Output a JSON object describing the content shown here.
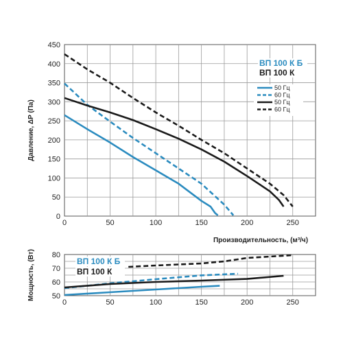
{
  "chart_data": [
    {
      "type": "line",
      "xlabel": "Производительность, (м³/ч)",
      "ylabel": "Давление, ΔP (Па)",
      "xlim": [
        0,
        275
      ],
      "ylim": [
        0,
        450
      ],
      "x_ticks": [
        0,
        50,
        100,
        150,
        200,
        250
      ],
      "y_ticks": [
        0,
        50,
        100,
        150,
        200,
        250,
        300,
        350,
        400,
        450
      ],
      "grid": true,
      "model_labels": [
        {
          "text": "ВП 100 К Б",
          "color": "#2a8bbf"
        },
        {
          "text": "ВП 100 К",
          "color": "#1a1a1a"
        }
      ],
      "legend_position": "right",
      "series": [
        {
          "name": "50 Гц",
          "color": "#2a8bbf",
          "dashed": false,
          "x": [
            0,
            25,
            50,
            75,
            100,
            125,
            150,
            160,
            165,
            168
          ],
          "y": [
            265,
            228,
            193,
            155,
            120,
            85,
            40,
            25,
            8,
            2
          ]
        },
        {
          "name": "60 Гц",
          "color": "#2a8bbf",
          "dashed": true,
          "x": [
            0,
            25,
            50,
            75,
            100,
            125,
            150,
            175,
            185
          ],
          "y": [
            348,
            292,
            248,
            205,
            165,
            125,
            85,
            30,
            2
          ]
        },
        {
          "name": "50 Гц",
          "color": "#1a1a1a",
          "dashed": false,
          "x": [
            0,
            25,
            50,
            75,
            100,
            125,
            150,
            175,
            200,
            225,
            235,
            240
          ],
          "y": [
            310,
            290,
            272,
            252,
            228,
            203,
            175,
            143,
            105,
            65,
            42,
            25
          ]
        },
        {
          "name": "60 Гц",
          "color": "#1a1a1a",
          "dashed": true,
          "x": [
            0,
            25,
            50,
            75,
            100,
            125,
            150,
            175,
            200,
            225,
            240,
            250
          ],
          "y": [
            425,
            385,
            350,
            310,
            272,
            237,
            200,
            165,
            125,
            85,
            55,
            25
          ]
        }
      ]
    },
    {
      "type": "line",
      "xlabel": "",
      "ylabel": "Мощность, (Вт)",
      "xlim": [
        0,
        275
      ],
      "ylim": [
        50,
        80
      ],
      "x_ticks": [
        0,
        50,
        100,
        150,
        200,
        250
      ],
      "y_ticks": [
        50,
        60,
        70,
        80
      ],
      "grid": true,
      "model_labels": [
        {
          "text": "ВП 100 К Б",
          "color": "#2a8bbf"
        },
        {
          "text": "ВП 100 К",
          "color": "#1a1a1a"
        }
      ],
      "series": [
        {
          "name": "ВП 100 К Б 50 Гц",
          "color": "#2a8bbf",
          "dashed": false,
          "x": [
            0,
            50,
            100,
            150,
            170
          ],
          "y": [
            50.5,
            52.5,
            54.5,
            56.5,
            57.2
          ]
        },
        {
          "name": "ВП 100 К Б 60 Гц",
          "color": "#2a8bbf",
          "dashed": true,
          "x": [
            0,
            50,
            100,
            150,
            190
          ],
          "y": [
            55.5,
            59.0,
            62.0,
            64.8,
            66.0
          ]
        },
        {
          "name": "ВП 100 К 50 Гц",
          "color": "#1a1a1a",
          "dashed": false,
          "x": [
            0,
            50,
            100,
            150,
            200,
            240
          ],
          "y": [
            56.0,
            58.5,
            60.0,
            61.0,
            62.2,
            64.5
          ]
        },
        {
          "name": "ВП 100 К 60 Гц",
          "color": "#1a1a1a",
          "dashed": true,
          "x": [
            70,
            100,
            150,
            175,
            200,
            250
          ],
          "y": [
            71.0,
            72.0,
            73.5,
            75.0,
            77.5,
            79.5
          ]
        }
      ]
    }
  ]
}
